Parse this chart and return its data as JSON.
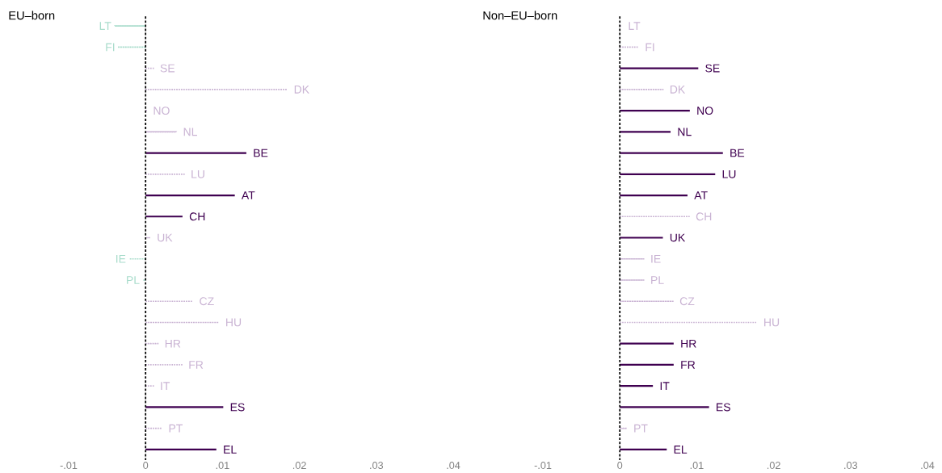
{
  "chart_data": [
    {
      "type": "bar",
      "orientation": "horizontal",
      "title": "EU–born",
      "categories": [
        "LT",
        "FI",
        "SE",
        "DK",
        "NO",
        "NL",
        "BE",
        "LU",
        "AT",
        "CH",
        "UK",
        "IE",
        "PL",
        "CZ",
        "HU",
        "HR",
        "FR",
        "IT",
        "ES",
        "PT",
        "EL"
      ],
      "series": [
        {
          "color": "#3f0050",
          "line_style": "solid",
          "values": [
            null,
            null,
            null,
            null,
            null,
            null,
            0.0131,
            null,
            0.0116,
            0.0048,
            null,
            null,
            null,
            null,
            null,
            null,
            null,
            null,
            0.0101,
            null,
            0.0092
          ]
        },
        {
          "line_style": "dotted",
          "colors": [
            "#a8dccb",
            "#a8dccb",
            "#c9b3d3",
            "#c9b3d3",
            "#c9b3d3",
            "#c9b3d3",
            "#c9b3d3",
            "#c9b3d3",
            "#c9b3d3",
            "#c9b3d3",
            "#c9b3d3",
            "#a8dccb",
            "#a8dccb",
            "#c9b3d3",
            "#c9b3d3",
            "#c9b3d3",
            "#c9b3d3",
            "#c9b3d3",
            "#c9b3d3",
            "#c9b3d3",
            "#c9b3d3"
          ],
          "values": [
            -0.004,
            -0.0035,
            0.001,
            0.0184,
            0.0001,
            0.004,
            null,
            0.005,
            null,
            null,
            0.0006,
            -0.0021,
            -0.0003,
            0.0061,
            0.0095,
            0.0016,
            0.0047,
            0.001,
            null,
            0.0021,
            null
          ]
        }
      ],
      "xlim": [
        -0.01,
        0.04
      ],
      "xticks": [
        {
          "value": -0.01,
          "label": "-.01"
        },
        0,
        {
          "value": 0.01,
          "label": ".01"
        },
        {
          "value": 0.02,
          "label": ".02"
        },
        {
          "value": 0.03,
          "label": ".03"
        },
        {
          "value": 0.04,
          "label": ".04"
        }
      ],
      "tick_labels": "x",
      "ref_lines": [
        {
          "axis": "x",
          "value": 0,
          "color": "#000000",
          "line_style": "dashed"
        }
      ]
    },
    {
      "type": "bar",
      "orientation": "horizontal",
      "title": "Non–EU–born",
      "categories": [
        "LT",
        "FI",
        "SE",
        "DK",
        "NO",
        "NL",
        "BE",
        "LU",
        "AT",
        "CH",
        "UK",
        "IE",
        "PL",
        "CZ",
        "HU",
        "HR",
        "FR",
        "IT",
        "ES",
        "PT",
        "EL"
      ],
      "series": [
        {
          "color": "#3f0050",
          "line_style": "solid",
          "values": [
            null,
            null,
            0.0102,
            null,
            0.0091,
            0.0066,
            0.0134,
            0.0124,
            0.0088,
            null,
            0.0056,
            null,
            null,
            null,
            null,
            0.007,
            0.007,
            0.0043,
            0.0116,
            null,
            0.0061
          ]
        },
        {
          "line_style": "dotted",
          "colors": [
            "#c9b3d3",
            "#c9b3d3",
            "#c9b3d3",
            "#c9b3d3",
            "#c9b3d3",
            "#c9b3d3",
            "#c9b3d3",
            "#c9b3d3",
            "#c9b3d3",
            "#c9b3d3",
            "#c9b3d3",
            "#c9b3d3",
            "#c9b3d3",
            "#c9b3d3",
            "#c9b3d3",
            "#c9b3d3",
            "#c9b3d3",
            "#c9b3d3",
            "#c9b3d3",
            "#c9b3d3",
            "#c9b3d3"
          ],
          "values": [
            0.0002,
            0.0024,
            null,
            0.0056,
            null,
            null,
            null,
            null,
            null,
            0.009,
            null,
            0.0031,
            0.0031,
            0.0069,
            0.0178,
            null,
            null,
            null,
            null,
            0.0009,
            null
          ]
        }
      ],
      "xlim": [
        -0.01,
        0.04
      ],
      "xticks": [
        {
          "value": -0.01,
          "label": "-.01"
        },
        0,
        {
          "value": 0.01,
          "label": ".01"
        },
        {
          "value": 0.02,
          "label": ".02"
        },
        {
          "value": 0.03,
          "label": ".03"
        },
        {
          "value": 0.04,
          "label": ".04"
        }
      ],
      "tick_labels": "x",
      "ref_lines": [
        {
          "axis": "x",
          "value": 0,
          "color": "#000000",
          "line_style": "dashed"
        }
      ]
    }
  ]
}
